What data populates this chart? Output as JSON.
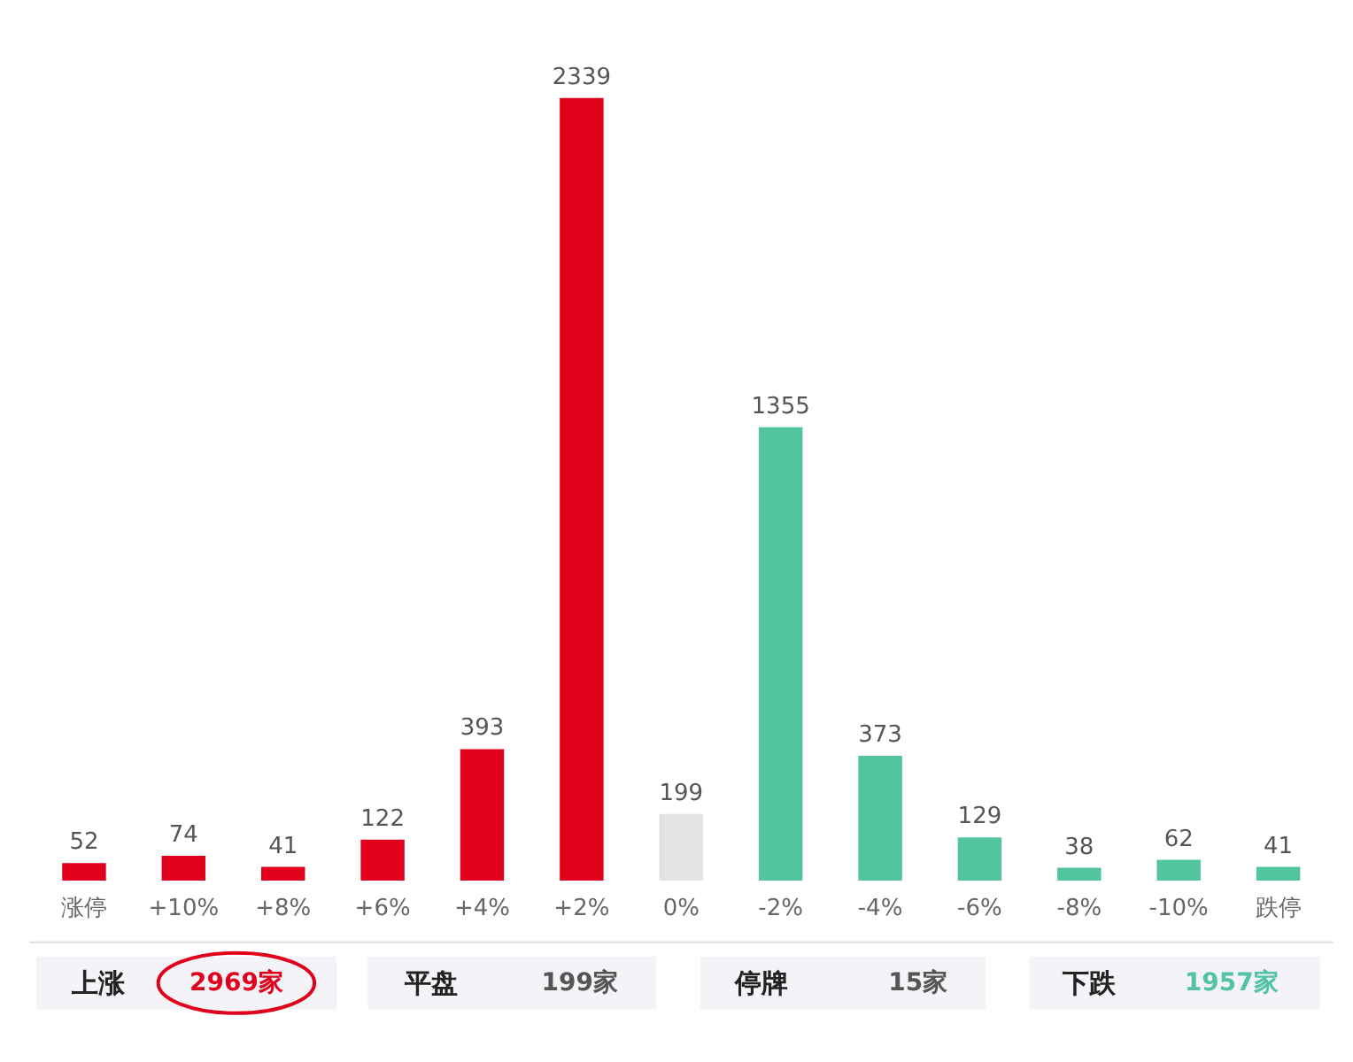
{
  "chart_data": {
    "type": "bar",
    "categories": [
      "涨停",
      "+10%",
      "+8%",
      "+6%",
      "+4%",
      "+2%",
      "0%",
      "-2%",
      "-4%",
      "-6%",
      "-8%",
      "-10%",
      "跌停"
    ],
    "values": [
      52,
      74,
      41,
      122,
      393,
      2339,
      199,
      1355,
      373,
      129,
      38,
      62,
      41
    ],
    "colors": [
      "#e0001b",
      "#e0001b",
      "#e0001b",
      "#e0001b",
      "#e0001b",
      "#e0001b",
      "#e3e3e3",
      "#52c4a0",
      "#52c4a0",
      "#52c4a0",
      "#52c4a0",
      "#52c4a0",
      "#52c4a0"
    ],
    "data_labels": true,
    "annotations": [
      "上涨",
      "2969家",
      "平盘",
      "199家",
      "停牌",
      "15家",
      "下跌",
      "1957家"
    ]
  }
}
